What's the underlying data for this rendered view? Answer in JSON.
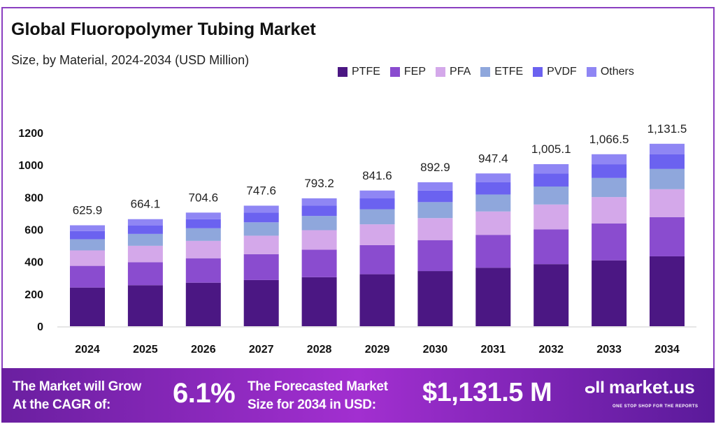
{
  "chart_data": {
    "type": "bar",
    "stacked": true,
    "title": "Global Fluoropolymer Tubing Market",
    "subtitle": "Size, by Material, 2024-2034 (USD Million)",
    "categories": [
      "2024",
      "2025",
      "2026",
      "2027",
      "2028",
      "2029",
      "2030",
      "2031",
      "2032",
      "2033",
      "2034"
    ],
    "totals": [
      "625.9",
      "664.1",
      "704.6",
      "747.6",
      "793.2",
      "841.6",
      "892.9",
      "947.4",
      "1,005.1",
      "1,066.5",
      "1,131.5"
    ],
    "series": [
      {
        "name": "PTFE",
        "color": "#4b1783",
        "values": [
          239.7,
          254.3,
          269.9,
          286.3,
          303.8,
          322.3,
          342.0,
          362.9,
          384.9,
          408.5,
          433.4
        ]
      },
      {
        "name": "FEP",
        "color": "#8a4ccf",
        "values": [
          134.6,
          142.8,
          151.5,
          160.7,
          170.5,
          180.9,
          192.0,
          203.7,
          216.1,
          229.3,
          243.3
        ]
      },
      {
        "name": "PFA",
        "color": "#d4a8ea",
        "values": [
          95.8,
          101.6,
          107.8,
          114.4,
          121.4,
          128.8,
          136.6,
          145.0,
          153.8,
          163.2,
          173.1
        ]
      },
      {
        "name": "ETFE",
        "color": "#8fa7dc",
        "values": [
          69.5,
          73.7,
          78.2,
          83.0,
          88.0,
          93.4,
          99.1,
          105.2,
          111.6,
          118.4,
          125.6
        ]
      },
      {
        "name": "PVDF",
        "color": "#6b62f0",
        "values": [
          50.1,
          53.1,
          56.4,
          59.8,
          63.5,
          67.3,
          71.4,
          75.8,
          80.4,
          85.3,
          90.5
        ]
      },
      {
        "name": "Others",
        "color": "#8f86f4",
        "values": [
          36.3,
          38.5,
          40.9,
          43.4,
          46.0,
          48.8,
          51.8,
          54.9,
          58.3,
          61.9,
          65.6
        ]
      }
    ],
    "yticks": [
      "0",
      "200",
      "400",
      "600",
      "800",
      "1000",
      "1200"
    ],
    "ylim": [
      0,
      1200
    ],
    "xlabel": "",
    "ylabel": "",
    "legend": "top-right",
    "grid": false
  },
  "banner": {
    "cagr_label_1": "The Market will Grow",
    "cagr_label_2": "At the CAGR of:",
    "cagr": "6.1%",
    "forecast_label_1": "The Forecasted Market",
    "forecast_label_2": "Size for 2034 in USD:",
    "forecast": "$1,131.5 M",
    "brand": "market.us",
    "tagline": "ONE STOP SHOP FOR THE REPORTS"
  }
}
